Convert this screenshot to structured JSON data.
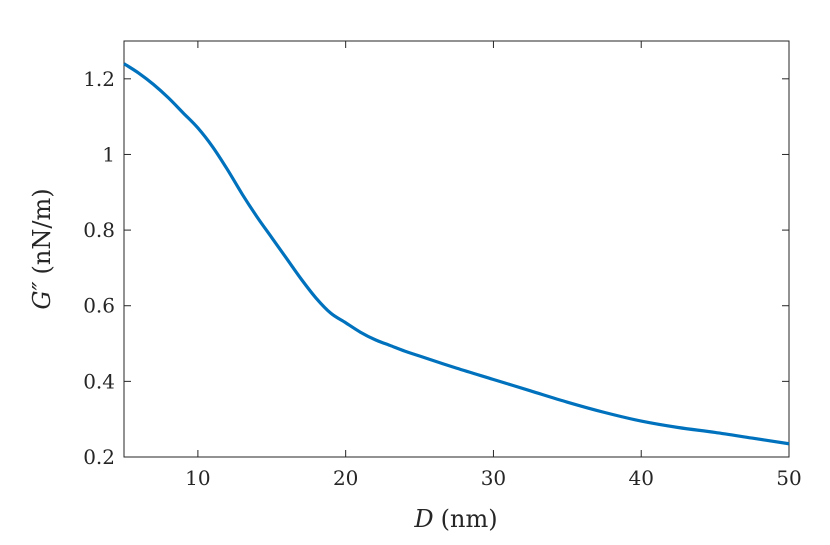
{
  "chart_data": {
    "type": "line",
    "xlabel": {
      "symbol": "D",
      "unit": "(nm)"
    },
    "ylabel": {
      "symbol": "G″",
      "unit": "(nN/m)"
    },
    "xlim": [
      5,
      50
    ],
    "ylim": [
      0.2,
      1.3
    ],
    "x_ticks": [
      10,
      20,
      30,
      40,
      50
    ],
    "x_tick_labels": [
      "10",
      "20",
      "30",
      "40",
      "50"
    ],
    "y_ticks": [
      0.2,
      0.4,
      0.6,
      0.8,
      1.0,
      1.2
    ],
    "y_tick_labels": [
      "0.2",
      "0.4",
      "0.6",
      "0.8",
      "1",
      "1.2"
    ],
    "grid": false,
    "box": true,
    "series": [
      {
        "color": "#0072bd",
        "x": [
          5,
          6,
          7,
          8,
          9,
          10,
          11,
          12,
          13,
          14,
          15,
          16,
          17,
          18,
          19,
          20,
          21,
          22,
          23,
          24,
          25,
          27.5,
          30,
          32.5,
          35,
          37.5,
          40,
          42.5,
          45,
          47.5,
          50
        ],
        "y": [
          1.24,
          1.215,
          1.185,
          1.15,
          1.11,
          1.07,
          1.02,
          0.96,
          0.895,
          0.835,
          0.78,
          0.725,
          0.67,
          0.62,
          0.58,
          0.555,
          0.53,
          0.51,
          0.495,
          0.48,
          0.467,
          0.435,
          0.405,
          0.375,
          0.345,
          0.318,
          0.295,
          0.278,
          0.265,
          0.25,
          0.235
        ]
      }
    ]
  }
}
